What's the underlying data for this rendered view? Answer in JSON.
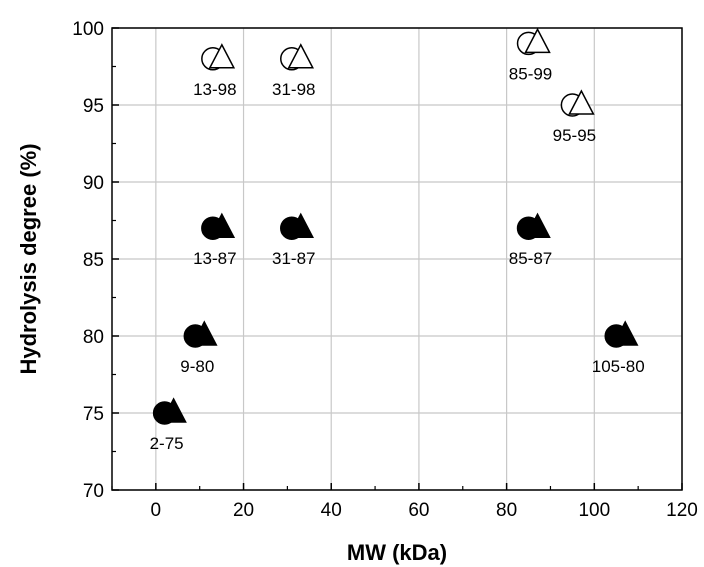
{
  "chart_data": {
    "type": "scatter",
    "xlabel": "MW (kDa)",
    "ylabel": "Hydrolysis degree (%)",
    "xlim": [
      -10,
      120
    ],
    "ylim": [
      70,
      100
    ],
    "xticks": [
      0,
      20,
      40,
      60,
      80,
      100,
      120
    ],
    "yticks": [
      70,
      75,
      80,
      85,
      90,
      95,
      100
    ],
    "grid": true,
    "legend": "none",
    "marker_colors": {
      "filled": "#000000",
      "open": "#ffffff",
      "edge": "#000000"
    },
    "points": [
      {
        "x": 13,
        "y": 98,
        "label": "13-98",
        "style": "open"
      },
      {
        "x": 31,
        "y": 98,
        "label": "31-98",
        "style": "open"
      },
      {
        "x": 85,
        "y": 99,
        "label": "85-99",
        "style": "open"
      },
      {
        "x": 95,
        "y": 95,
        "label": "95-95",
        "style": "open"
      },
      {
        "x": 13,
        "y": 87,
        "label": "13-87",
        "style": "filled"
      },
      {
        "x": 31,
        "y": 87,
        "label": "31-87",
        "style": "filled"
      },
      {
        "x": 85,
        "y": 87,
        "label": "85-87",
        "style": "filled"
      },
      {
        "x": 9,
        "y": 80,
        "label": "9-80",
        "style": "filled"
      },
      {
        "x": 105,
        "y": 80,
        "label": "105-80",
        "style": "filled"
      },
      {
        "x": 2,
        "y": 75,
        "label": "2-75",
        "style": "filled"
      }
    ]
  }
}
